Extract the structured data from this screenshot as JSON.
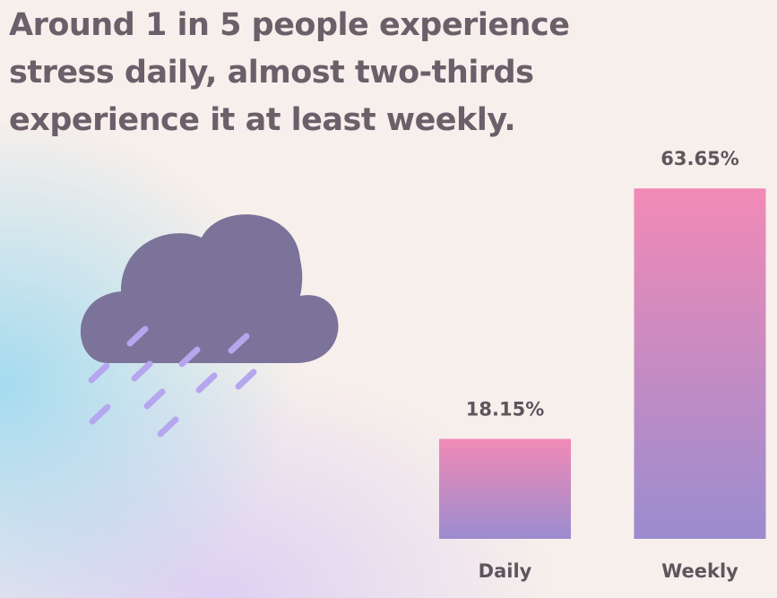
{
  "chart_data": {
    "type": "bar",
    "title": "Around 1 in 5 people experience stress daily, almost two-thirds experience it at least weekly.",
    "categories": [
      "Daily",
      "Weekly"
    ],
    "values": [
      18.15,
      63.65
    ],
    "value_labels": [
      "18.15%",
      "63.65%"
    ]
  }
}
